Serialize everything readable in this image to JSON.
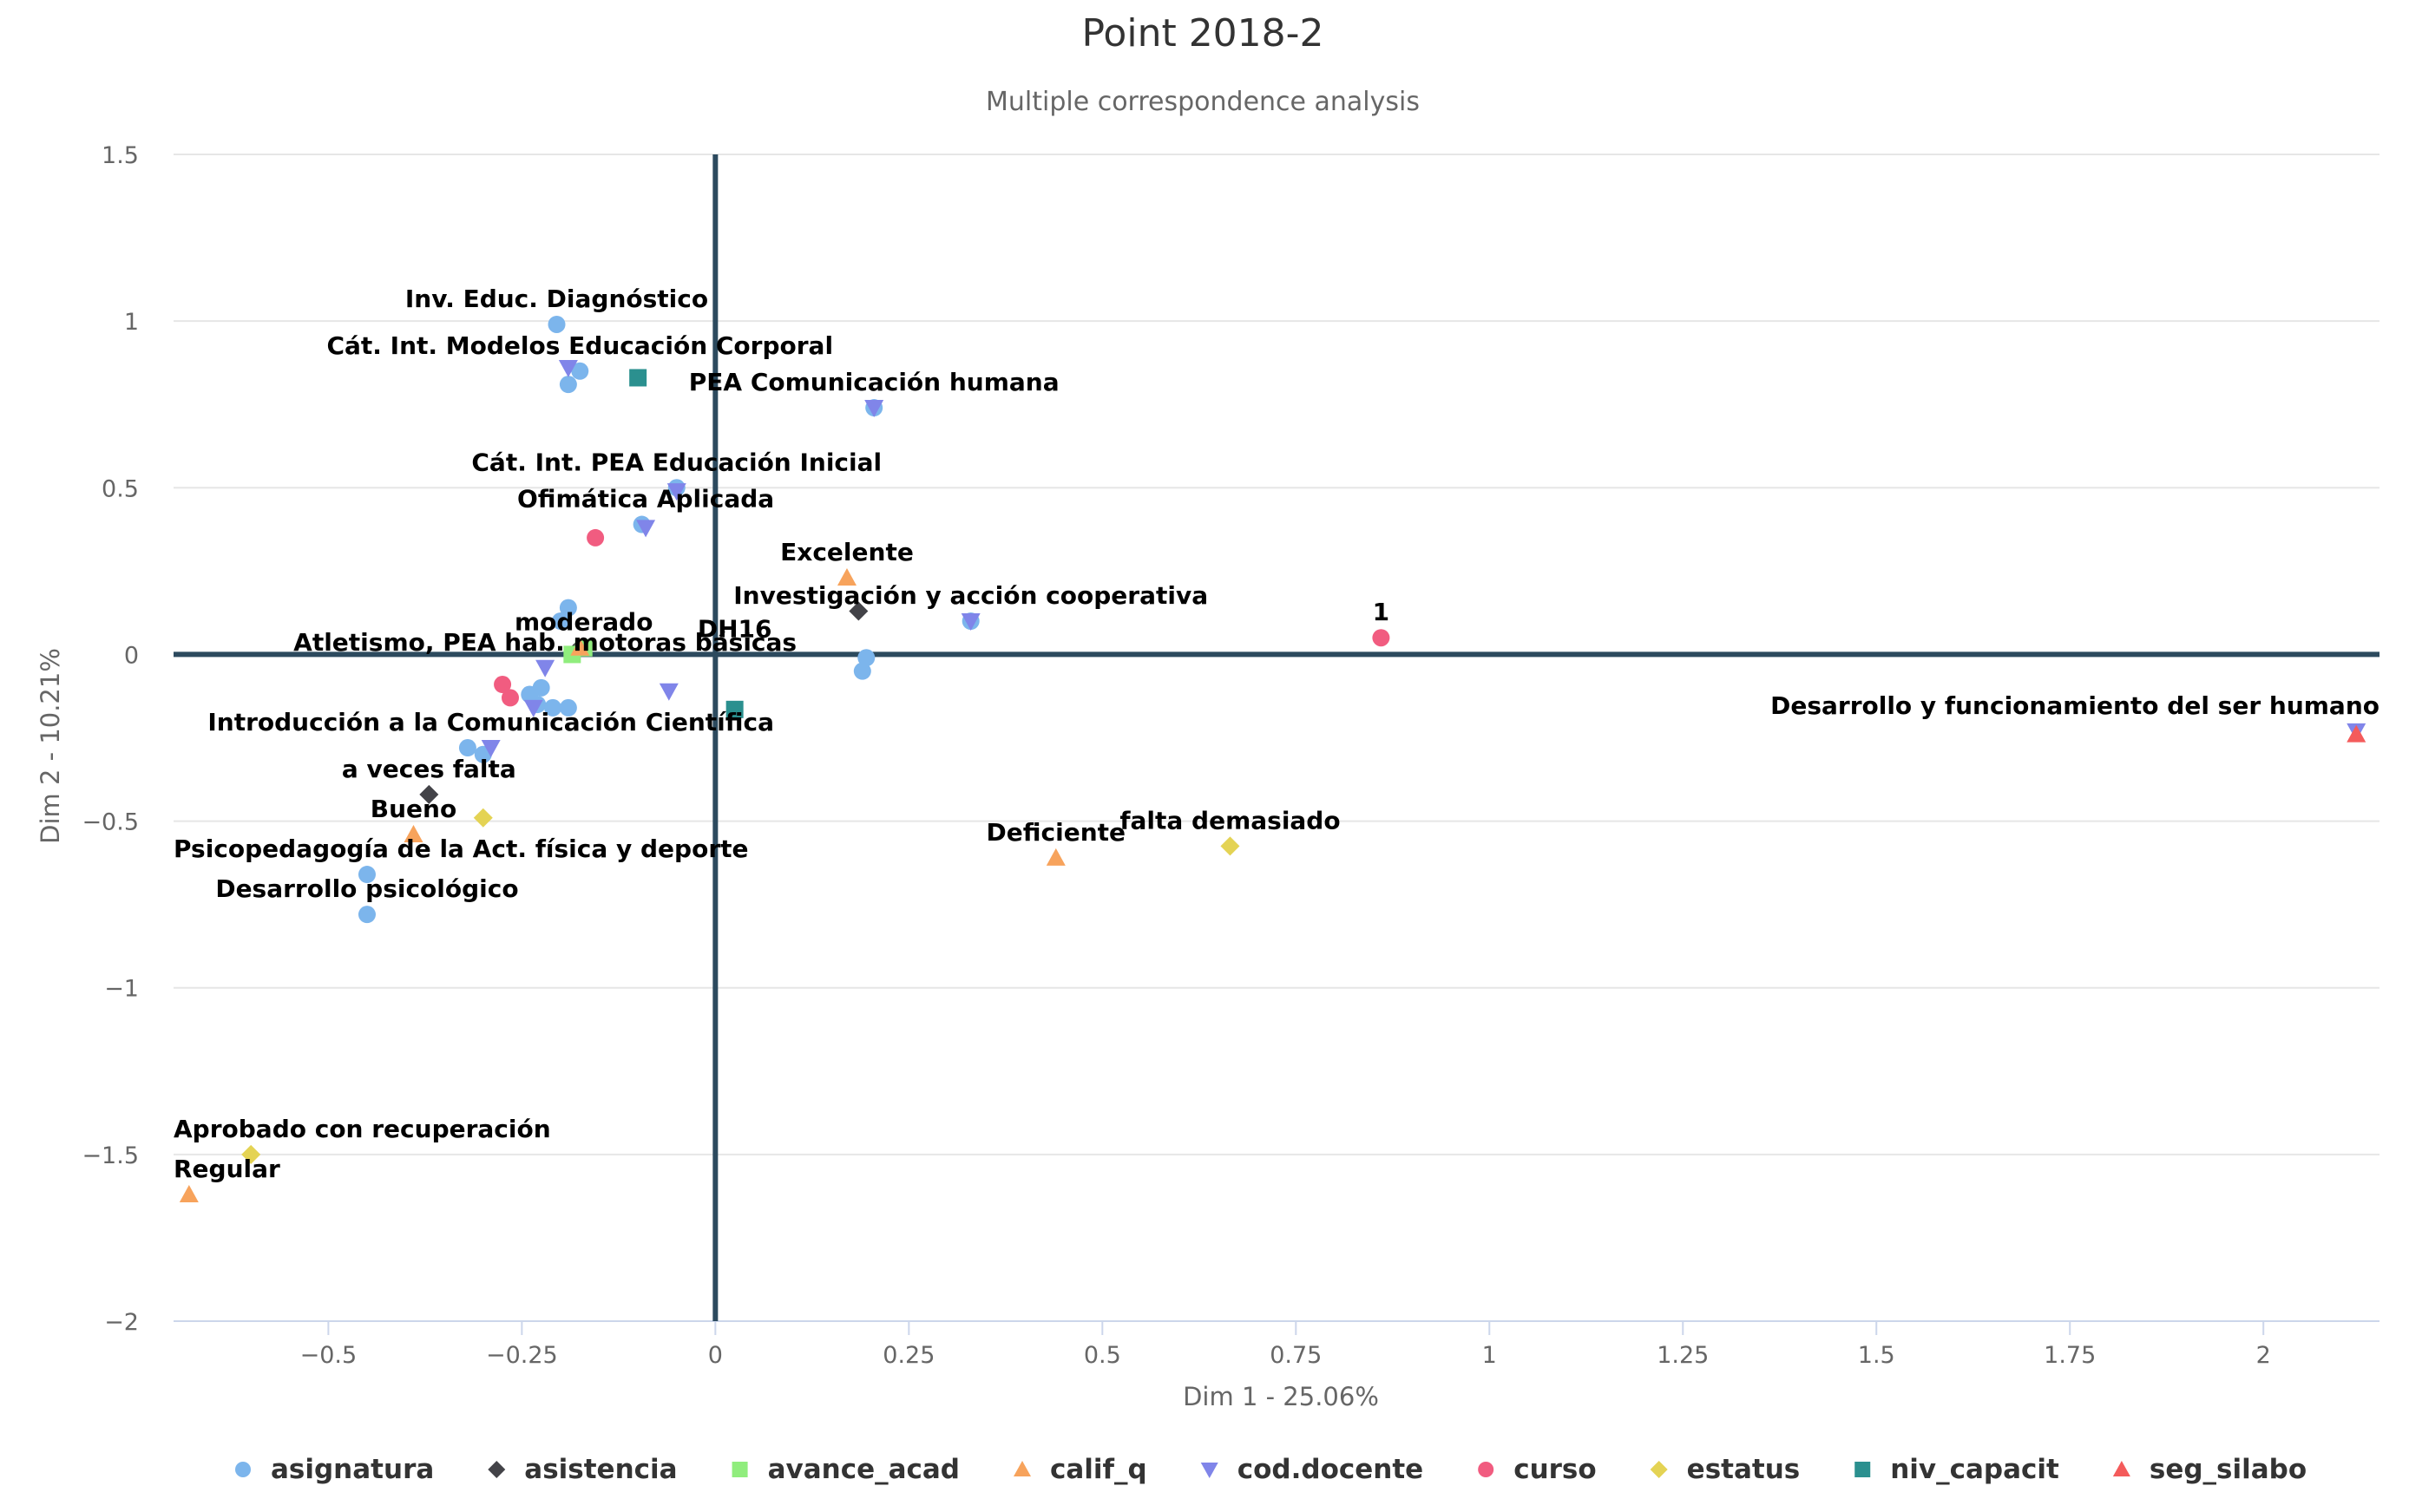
{
  "chart_data": {
    "type": "scatter",
    "title": "Point 2018-2",
    "subtitle": "Multiple correspondence analysis",
    "xlabel": "Dim 1 - 25.06%",
    "ylabel": "Dim 2 - 10.21%",
    "xlim": [
      -0.7,
      2.15
    ],
    "ylim": [
      -2,
      1.5
    ],
    "x_ticks": [
      "-0.5",
      "-0.25",
      "0",
      "0.25",
      "0.5",
      "0.75",
      "1",
      "1.25",
      "1.5",
      "1.75",
      "2"
    ],
    "y_ticks": [
      "1.5",
      "1",
      "0.5",
      "0",
      "-0.5",
      "-1",
      "-1.5",
      "-2"
    ],
    "grid": "horizontal",
    "legend_position": "bottom",
    "series": [
      {
        "name": "asignatura",
        "color": "#7cb5ec",
        "marker": "circle",
        "points": [
          [
            -0.205,
            0.99
          ],
          [
            -0.175,
            0.85
          ],
          [
            -0.19,
            0.81
          ],
          [
            -0.095,
            0.39
          ],
          [
            -0.19,
            0.14
          ],
          [
            -0.2,
            0.1
          ],
          [
            -0.225,
            -0.1
          ],
          [
            -0.24,
            -0.12
          ],
          [
            -0.23,
            -0.15
          ],
          [
            -0.21,
            -0.16
          ],
          [
            -0.19,
            -0.16
          ],
          [
            -0.32,
            -0.28
          ],
          [
            -0.3,
            -0.3
          ],
          [
            -0.45,
            -0.66
          ],
          [
            -0.45,
            -0.78
          ],
          [
            0.19,
            -0.05
          ],
          [
            0.195,
            -0.01
          ],
          [
            0.33,
            0.1
          ],
          [
            0.205,
            0.74
          ],
          [
            -0.05,
            0.5
          ]
        ]
      },
      {
        "name": "asistencia",
        "color": "#434348",
        "marker": "diamond",
        "points": [
          [
            0.185,
            0.13
          ],
          [
            -0.37,
            -0.42
          ],
          [
            -0.18,
            0.01
          ]
        ]
      },
      {
        "name": "avance_acad",
        "color": "#90ed7d",
        "marker": "square",
        "points": [
          [
            -0.17,
            0.02
          ],
          [
            -0.185,
            0.0
          ]
        ]
      },
      {
        "name": "calif_q",
        "color": "#f7a35c",
        "marker": "triangle",
        "points": [
          [
            0.17,
            0.23
          ],
          [
            -0.39,
            -0.54
          ],
          [
            0.44,
            -0.61
          ],
          [
            -0.68,
            -1.62
          ],
          [
            -0.175,
            0.02
          ]
        ]
      },
      {
        "name": "cod.docente",
        "color": "#8085e9",
        "marker": "triangle-down",
        "points": [
          [
            -0.19,
            0.86
          ],
          [
            0.205,
            0.74
          ],
          [
            -0.05,
            0.49
          ],
          [
            -0.09,
            0.38
          ],
          [
            0.33,
            0.1
          ],
          [
            -0.22,
            -0.04
          ],
          [
            -0.06,
            -0.11
          ],
          [
            -0.235,
            -0.16
          ],
          [
            -0.29,
            -0.28
          ],
          [
            2.12,
            -0.23
          ]
        ]
      },
      {
        "name": "curso",
        "color": "#f15c80",
        "marker": "circle",
        "points": [
          [
            -0.155,
            0.35
          ],
          [
            0.86,
            0.05
          ],
          [
            -0.275,
            -0.09
          ],
          [
            -0.265,
            -0.13
          ]
        ]
      },
      {
        "name": "estatus",
        "color": "#e4d354",
        "marker": "diamond",
        "points": [
          [
            -0.3,
            -0.49
          ],
          [
            0.665,
            -0.575
          ],
          [
            -0.6,
            -1.5
          ]
        ]
      },
      {
        "name": "niv_capacit",
        "color": "#2b908f",
        "marker": "square",
        "points": [
          [
            -0.1,
            0.83
          ],
          [
            0.025,
            -0.165
          ]
        ]
      },
      {
        "name": "seg_silabo",
        "color": "#f45b5b",
        "marker": "triangle",
        "points": [
          [
            2.12,
            -0.24
          ]
        ]
      }
    ],
    "annotations": [
      {
        "text": "Inv. Educ. Diagnóstico",
        "x": -0.205,
        "y": 0.99
      },
      {
        "text": "Cát. Int. Modelos Educación Corporal",
        "x": -0.175,
        "y": 0.85
      },
      {
        "text": "PEA Comunicación humana",
        "x": 0.205,
        "y": 0.74
      },
      {
        "text": "Cát. Int. PEA Educación Inicial",
        "x": -0.05,
        "y": 0.5
      },
      {
        "text": "Ofimática Aplicada",
        "x": -0.09,
        "y": 0.39
      },
      {
        "text": "Excelente",
        "x": 0.17,
        "y": 0.23
      },
      {
        "text": "Investigación y acción cooperativa",
        "x": 0.33,
        "y": 0.1
      },
      {
        "text": "1",
        "x": 0.86,
        "y": 0.05
      },
      {
        "text": "moderado",
        "x": -0.17,
        "y": 0.02
      },
      {
        "text": "DH16",
        "x": 0.025,
        "y": 0.0
      },
      {
        "text": "Atletismo, PEA hab. motoras básicas",
        "x": -0.22,
        "y": -0.04
      },
      {
        "text": "Desarrollo y funcionamiento del ser humano",
        "x": 2.12,
        "y": -0.23
      },
      {
        "text": "Introducción a la Comunicación Científica",
        "x": -0.29,
        "y": -0.28
      },
      {
        "text": "a veces falta",
        "x": -0.37,
        "y": -0.42
      },
      {
        "text": "Bueno",
        "x": -0.39,
        "y": -0.54
      },
      {
        "text": "falta demasiado",
        "x": 0.665,
        "y": -0.575
      },
      {
        "text": "Deficiente",
        "x": 0.44,
        "y": -0.61
      },
      {
        "text": "Psicopedagogía de la Act. física y deporte",
        "x": -0.45,
        "y": -0.66
      },
      {
        "text": "Desarrollo psicológico",
        "x": -0.45,
        "y": -0.78
      },
      {
        "text": "Aprobado con recuperación",
        "x": -0.6,
        "y": -1.5
      },
      {
        "text": "Regular",
        "x": -0.68,
        "y": -1.62
      }
    ]
  }
}
